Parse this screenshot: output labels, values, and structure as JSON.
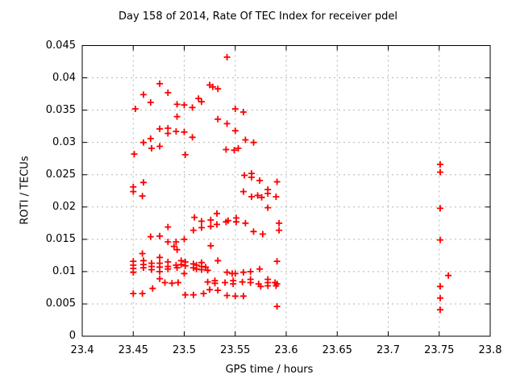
{
  "page": {
    "background": "#ffffff",
    "text_color": "#000000"
  },
  "chart_data": {
    "type": "scatter",
    "title": "Day 158 of 2014, Rate Of TEC Index for receiver pdel",
    "xlabel": "GPS time / hours",
    "ylabel": "ROTI / TECUs",
    "xlim": [
      23.4,
      23.8
    ],
    "ylim": [
      0,
      0.045
    ],
    "xticks": [
      23.4,
      23.45,
      23.5,
      23.55,
      23.6,
      23.65,
      23.7,
      23.75,
      23.8
    ],
    "xtick_labels": [
      "23.4",
      "23.45",
      "23.5",
      "23.55",
      "23.6",
      "23.65",
      "23.7",
      "23.75",
      "23.8"
    ],
    "yticks": [
      0,
      0.005,
      0.01,
      0.015,
      0.02,
      0.025,
      0.03,
      0.035,
      0.04,
      0.045
    ],
    "ytick_labels": [
      "0",
      "0.005",
      "0.01",
      "0.015",
      "0.02",
      "0.025",
      "0.03",
      "0.035",
      "0.04",
      "0.045"
    ],
    "grid": true,
    "grid_color": "#b3b3b3",
    "axis_color": "#000000",
    "legend_position": "none",
    "marker": {
      "symbol": "plus",
      "color": "#ff0000",
      "size": 9
    },
    "series": [
      {
        "name": "ROTI",
        "points": [
          [
            23.542,
            0.0432
          ],
          [
            23.476,
            0.0391
          ],
          [
            23.525,
            0.0389
          ],
          [
            23.528,
            0.0386
          ],
          [
            23.533,
            0.0383
          ],
          [
            23.484,
            0.0377
          ],
          [
            23.46,
            0.0374
          ],
          [
            23.514,
            0.0368
          ],
          [
            23.517,
            0.0363
          ],
          [
            23.467,
            0.0362
          ],
          [
            23.493,
            0.0359
          ],
          [
            23.5,
            0.0358
          ],
          [
            23.508,
            0.0354
          ],
          [
            23.452,
            0.0352
          ],
          [
            23.55,
            0.0352
          ],
          [
            23.558,
            0.0347
          ],
          [
            23.493,
            0.034
          ],
          [
            23.533,
            0.0336
          ],
          [
            23.542,
            0.0329
          ],
          [
            23.484,
            0.0322
          ],
          [
            23.476,
            0.0321
          ],
          [
            23.55,
            0.0318
          ],
          [
            23.492,
            0.0317
          ],
          [
            23.5,
            0.0316
          ],
          [
            23.484,
            0.0314
          ],
          [
            23.508,
            0.0308
          ],
          [
            23.467,
            0.0306
          ],
          [
            23.56,
            0.0304
          ],
          [
            23.46,
            0.03
          ],
          [
            23.568,
            0.03
          ],
          [
            23.476,
            0.0294
          ],
          [
            23.553,
            0.0291
          ],
          [
            23.468,
            0.0291
          ],
          [
            23.541,
            0.0289
          ],
          [
            23.549,
            0.0288
          ],
          [
            23.451,
            0.0282
          ],
          [
            23.501,
            0.0281
          ],
          [
            23.751,
            0.0266
          ],
          [
            23.751,
            0.0254
          ],
          [
            23.566,
            0.0252
          ],
          [
            23.559,
            0.0249
          ],
          [
            23.566,
            0.0246
          ],
          [
            23.574,
            0.0241
          ],
          [
            23.591,
            0.0239
          ],
          [
            23.46,
            0.0238
          ],
          [
            23.45,
            0.0231
          ],
          [
            23.582,
            0.0227
          ],
          [
            23.45,
            0.0224
          ],
          [
            23.558,
            0.0224
          ],
          [
            23.582,
            0.0221
          ],
          [
            23.459,
            0.0217
          ],
          [
            23.572,
            0.0218
          ],
          [
            23.566,
            0.0216
          ],
          [
            23.59,
            0.0216
          ],
          [
            23.576,
            0.0215
          ],
          [
            23.582,
            0.0199
          ],
          [
            23.751,
            0.0198
          ],
          [
            23.532,
            0.019
          ],
          [
            23.51,
            0.0184
          ],
          [
            23.551,
            0.0183
          ],
          [
            23.526,
            0.018
          ],
          [
            23.543,
            0.0179
          ],
          [
            23.517,
            0.0178
          ],
          [
            23.541,
            0.0177
          ],
          [
            23.551,
            0.0177
          ],
          [
            23.56,
            0.0175
          ],
          [
            23.593,
            0.0175
          ],
          [
            23.532,
            0.0173
          ],
          [
            23.526,
            0.017
          ],
          [
            23.484,
            0.0169
          ],
          [
            23.517,
            0.0168
          ],
          [
            23.593,
            0.0164
          ],
          [
            23.509,
            0.0164
          ],
          [
            23.568,
            0.0162
          ],
          [
            23.577,
            0.0158
          ],
          [
            23.476,
            0.0155
          ],
          [
            23.467,
            0.0154
          ],
          [
            23.5,
            0.015
          ],
          [
            23.751,
            0.0149
          ],
          [
            23.492,
            0.0146
          ],
          [
            23.484,
            0.0146
          ],
          [
            23.526,
            0.014
          ],
          [
            23.49,
            0.0139
          ],
          [
            23.493,
            0.0134
          ],
          [
            23.459,
            0.0128
          ],
          [
            23.476,
            0.0122
          ],
          [
            23.533,
            0.0117
          ],
          [
            23.46,
            0.0117
          ],
          [
            23.497,
            0.0117
          ],
          [
            23.45,
            0.0116
          ],
          [
            23.591,
            0.0116
          ],
          [
            23.501,
            0.0115
          ],
          [
            23.484,
            0.0115
          ],
          [
            23.517,
            0.0114
          ],
          [
            23.468,
            0.0113
          ],
          [
            23.476,
            0.0113
          ],
          [
            23.509,
            0.0112
          ],
          [
            23.46,
            0.0111
          ],
          [
            23.497,
            0.0111
          ],
          [
            23.512,
            0.011
          ],
          [
            23.45,
            0.011
          ],
          [
            23.492,
            0.011
          ],
          [
            23.501,
            0.0109
          ],
          [
            23.468,
            0.0108
          ],
          [
            23.484,
            0.0108
          ],
          [
            23.517,
            0.0108
          ],
          [
            23.476,
            0.0107
          ],
          [
            23.521,
            0.0107
          ],
          [
            23.46,
            0.0106
          ],
          [
            23.509,
            0.0106
          ],
          [
            23.493,
            0.0106
          ],
          [
            23.45,
            0.0105
          ],
          [
            23.512,
            0.0104
          ],
          [
            23.484,
            0.0104
          ],
          [
            23.574,
            0.0104
          ],
          [
            23.468,
            0.0103
          ],
          [
            23.517,
            0.0103
          ],
          [
            23.523,
            0.0102
          ],
          [
            23.476,
            0.01
          ],
          [
            23.565,
            0.01
          ],
          [
            23.45,
            0.0099
          ],
          [
            23.542,
            0.0099
          ],
          [
            23.558,
            0.0099
          ],
          [
            23.547,
            0.0097
          ],
          [
            23.55,
            0.0097
          ],
          [
            23.5,
            0.0097
          ],
          [
            23.759,
            0.0094
          ],
          [
            23.476,
            0.0089
          ],
          [
            23.565,
            0.0088
          ],
          [
            23.582,
            0.0088
          ],
          [
            23.53,
            0.0086
          ],
          [
            23.548,
            0.0086
          ],
          [
            23.523,
            0.0084
          ],
          [
            23.557,
            0.0084
          ],
          [
            23.589,
            0.0083
          ],
          [
            23.481,
            0.0083
          ],
          [
            23.54,
            0.0083
          ],
          [
            23.582,
            0.0083
          ],
          [
            23.565,
            0.0083
          ],
          [
            23.494,
            0.0083
          ],
          [
            23.488,
            0.0082
          ],
          [
            23.53,
            0.0082
          ],
          [
            23.548,
            0.0081
          ],
          [
            23.591,
            0.0081
          ],
          [
            23.573,
            0.0081
          ],
          [
            23.582,
            0.0078
          ],
          [
            23.59,
            0.0078
          ],
          [
            23.575,
            0.0077
          ],
          [
            23.751,
            0.0077
          ],
          [
            23.469,
            0.0074
          ],
          [
            23.525,
            0.0072
          ],
          [
            23.533,
            0.0071
          ],
          [
            23.45,
            0.0066
          ],
          [
            23.459,
            0.0066
          ],
          [
            23.501,
            0.0064
          ],
          [
            23.509,
            0.0064
          ],
          [
            23.519,
            0.0066
          ],
          [
            23.542,
            0.0063
          ],
          [
            23.55,
            0.0062
          ],
          [
            23.558,
            0.0062
          ],
          [
            23.751,
            0.0059
          ],
          [
            23.591,
            0.0046
          ],
          [
            23.751,
            0.0041
          ]
        ]
      }
    ]
  }
}
